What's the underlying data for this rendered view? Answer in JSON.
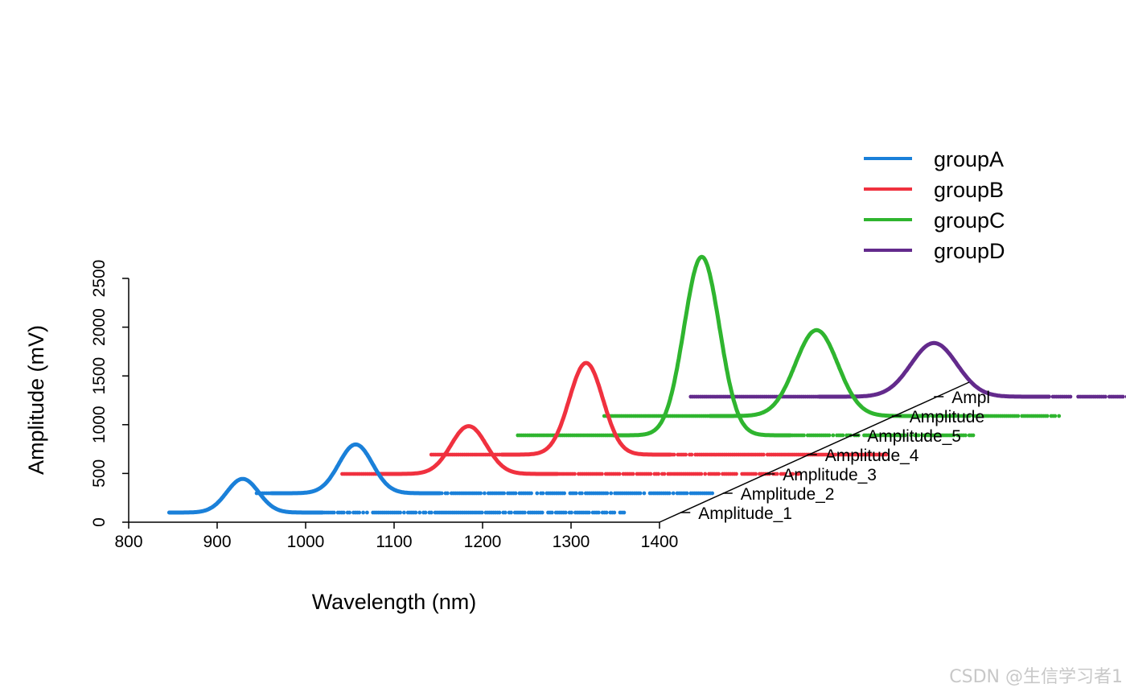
{
  "chart_data": {
    "type": "line",
    "style": "3d-waterfall",
    "xlabel": "Wavelength (nm)",
    "ylabel": "Amplitude (mV)",
    "xlim": [
      800,
      1400
    ],
    "ylim": [
      0,
      2500
    ],
    "x_ticks": [
      "800",
      "900",
      "1000",
      "1100",
      "1200",
      "1300",
      "1400"
    ],
    "y_ticks": [
      "0",
      "500",
      "1000",
      "1500",
      "2000",
      "2500"
    ],
    "depth_ticks": [
      "Amplitude_1",
      "Amplitude_2",
      "Amplitude_3",
      "Amplitude_4",
      "Amplitude_5",
      "Amplitude",
      "Ampl"
    ],
    "legend": [
      {
        "name": "groupA",
        "color": "#1a80d9"
      },
      {
        "name": "groupB",
        "color": "#f0313f"
      },
      {
        "name": "groupC",
        "color": "#2fb52f"
      },
      {
        "name": "groupD",
        "color": "#632a8c"
      }
    ],
    "series": [
      {
        "name": "Amplitude_1",
        "group": "groupA",
        "color": "#1a80d9",
        "x_range": [
          822,
          1338
        ],
        "peak_x": 905,
        "peak_height": 345,
        "sigma": 18
      },
      {
        "name": "Amplitude_2",
        "group": "groupA",
        "color": "#1a80d9",
        "x_range": [
          873,
          1390
        ],
        "peak_x": 985,
        "peak_height": 500,
        "sigma": 19
      },
      {
        "name": "Amplitude_3",
        "group": "groupB",
        "color": "#f0313f",
        "x_range": [
          922,
          1440
        ],
        "peak_x": 1065,
        "peak_height": 490,
        "sigma": 20
      },
      {
        "name": "Amplitude_4",
        "group": "groupB",
        "color": "#f0313f",
        "x_range": [
          975,
          1490
        ],
        "peak_x": 1150,
        "peak_height": 940,
        "sigma": 19
      },
      {
        "name": "Amplitude_5",
        "group": "groupC",
        "color": "#2fb52f",
        "x_range": [
          1025,
          1540
        ],
        "peak_x": 1233,
        "peak_height": 1830,
        "sigma": 20
      },
      {
        "name": "Amplitude",
        "group": "groupC",
        "color": "#2fb52f",
        "x_range": [
          1075,
          1590
        ],
        "peak_x": 1315,
        "peak_height": 880,
        "sigma": 24
      },
      {
        "name": "Ampl",
        "group": "groupD",
        "color": "#632a8c",
        "x_range": [
          1125,
          1640
        ],
        "peak_x": 1400,
        "peak_height": 550,
        "sigma": 26
      }
    ]
  },
  "watermark": "CSDN @生信学习者1"
}
